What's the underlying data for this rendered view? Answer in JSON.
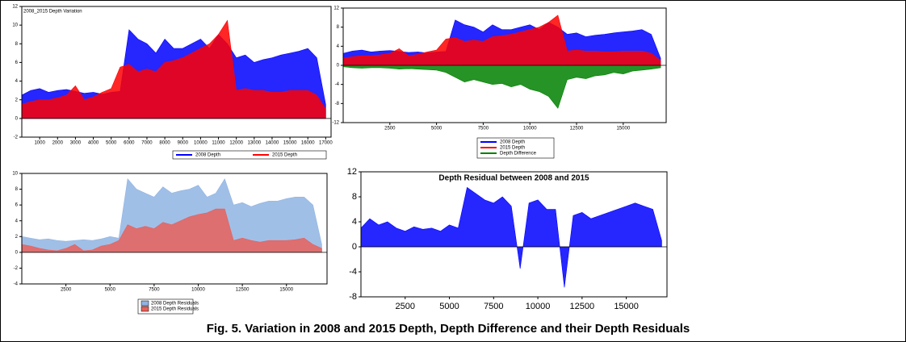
{
  "caption": "Fig. 5. Variation in 2008 and 2015 Depth, Depth Difference and their Depth Residuals",
  "chart_data": [
    {
      "type": "area",
      "title": "2008_2015 Depth Variation",
      "legend": "bottom",
      "x": [
        0,
        500,
        1000,
        1500,
        2000,
        2500,
        3000,
        3500,
        4000,
        4500,
        5000,
        5500,
        6000,
        6500,
        7000,
        7500,
        8000,
        8500,
        9000,
        9500,
        10000,
        10500,
        11000,
        11500,
        12000,
        12500,
        13000,
        13500,
        14000,
        14500,
        15000,
        15500,
        16000,
        16500,
        17000
      ],
      "xlim": [
        0,
        17300
      ],
      "xticks": [
        1000,
        2000,
        3000,
        4000,
        5000,
        6000,
        7000,
        8000,
        9000,
        10000,
        11000,
        12000,
        13000,
        14000,
        15000,
        16000,
        17000
      ],
      "ylim": [
        -2,
        12
      ],
      "yticks": [
        -2,
        0,
        2,
        4,
        6,
        8,
        10,
        12
      ],
      "series": [
        {
          "name": "2008 Depth",
          "color": "#0000ff",
          "values": [
            2.5,
            3,
            3.2,
            2.8,
            3,
            3.1,
            2.9,
            2.7,
            2.8,
            2.6,
            2.8,
            2.9,
            9.5,
            8.5,
            8,
            7,
            8.5,
            7.5,
            7.5,
            8,
            8.5,
            7.5,
            9,
            8,
            6.5,
            6.8,
            6,
            6.3,
            6.5,
            6.8,
            7,
            7.2,
            7.5,
            6.5,
            1.5
          ]
        },
        {
          "name": "2015 Depth",
          "color": "#ff0000",
          "values": [
            1.5,
            1.8,
            2,
            2,
            2.2,
            2.5,
            3.5,
            2,
            2.3,
            2.8,
            3.2,
            5.5,
            5.8,
            5,
            5.3,
            5,
            6,
            6.2,
            6.5,
            7,
            7.5,
            8,
            9,
            10.5,
            3,
            3.2,
            3,
            3,
            2.8,
            2.8,
            3,
            3,
            3,
            2.5,
            1
          ]
        }
      ]
    },
    {
      "type": "area",
      "legend": "bottom",
      "x": [
        0,
        500,
        1000,
        1500,
        2000,
        2500,
        3000,
        3500,
        4000,
        4500,
        5000,
        5500,
        6000,
        6500,
        7000,
        7500,
        8000,
        8500,
        9000,
        9500,
        10000,
        10500,
        11000,
        11500,
        12000,
        12500,
        13000,
        13500,
        14000,
        14500,
        15000,
        15500,
        16000,
        16500,
        17000
      ],
      "xlim": [
        0,
        17300
      ],
      "xticks": [
        2500,
        5000,
        7500,
        10000,
        12500,
        15000
      ],
      "ylim": [
        -12,
        12
      ],
      "yticks": [
        -12,
        -8,
        -4,
        0,
        4,
        8,
        12
      ],
      "series": [
        {
          "name": "2008 Depth",
          "color": "#0000ff",
          "values": [
            2.5,
            3,
            3.2,
            2.8,
            3,
            3.1,
            2.9,
            2.7,
            2.8,
            2.6,
            2.8,
            2.9,
            9.5,
            8.5,
            8,
            7,
            8.5,
            7.5,
            7.5,
            8,
            8.5,
            7.5,
            9,
            8,
            6.5,
            6.8,
            6,
            6.3,
            6.5,
            6.8,
            7,
            7.2,
            7.5,
            6.5,
            1.5
          ]
        },
        {
          "name": "2015 Depth",
          "color": "#ff0000",
          "values": [
            1.5,
            1.8,
            2,
            2,
            2.2,
            2.5,
            3.5,
            2,
            2.3,
            2.8,
            3.2,
            5.5,
            5.8,
            5,
            5.3,
            5,
            6,
            6.2,
            6.5,
            7,
            7.5,
            8,
            9,
            10.5,
            3,
            3.2,
            3,
            3,
            2.8,
            2.8,
            3,
            3,
            3,
            2.5,
            1
          ]
        },
        {
          "name": "Depth Difference",
          "color": "#008000",
          "values": [
            -0.3,
            -0.5,
            -0.6,
            -0.5,
            -0.5,
            -0.6,
            -0.8,
            -0.7,
            -0.8,
            -0.9,
            -1,
            -1.5,
            -2.5,
            -3.5,
            -3,
            -3.5,
            -4,
            -3.8,
            -4.5,
            -4,
            -5,
            -5.5,
            -6.5,
            -9,
            -3,
            -2.5,
            -2.8,
            -2.2,
            -2,
            -1.5,
            -1.8,
            -1.2,
            -1,
            -0.8,
            -0.5
          ]
        }
      ]
    },
    {
      "type": "area",
      "legend": "bottom",
      "x": [
        0,
        500,
        1000,
        1500,
        2000,
        2500,
        3000,
        3500,
        4000,
        4500,
        5000,
        5500,
        6000,
        6500,
        7000,
        7500,
        8000,
        8500,
        9000,
        9500,
        10000,
        10500,
        11000,
        11500,
        12000,
        12500,
        13000,
        13500,
        14000,
        14500,
        15000,
        15500,
        16000,
        16500,
        17000
      ],
      "xlim": [
        0,
        17300
      ],
      "xticks": [
        2500,
        5000,
        7500,
        10000,
        12500,
        15000
      ],
      "ylim": [
        -4,
        10
      ],
      "yticks": [
        -4,
        -2,
        0,
        2,
        4,
        6,
        8,
        10
      ],
      "series": [
        {
          "name": "2008 Depth Residuals",
          "color": "#8fb4e3",
          "values": [
            2,
            1.8,
            1.6,
            1.7,
            1.5,
            1.4,
            1.5,
            1.6,
            1.5,
            1.7,
            2,
            1.8,
            9.3,
            8,
            7.5,
            7,
            8.3,
            7.5,
            7.8,
            8,
            8.5,
            7,
            7.5,
            9.3,
            6,
            6.3,
            5.8,
            6.2,
            6.5,
            6.5,
            6.8,
            7,
            7,
            6,
            1
          ]
        },
        {
          "name": "2015 Depth Residuals",
          "color": "#e8605a",
          "values": [
            1,
            0.8,
            0.5,
            0.3,
            0.2,
            0.5,
            1,
            0.2,
            0.3,
            0.8,
            1,
            1.5,
            3.5,
            3,
            3.3,
            3,
            3.8,
            3.5,
            4,
            4.5,
            4.8,
            5,
            5.5,
            5.5,
            1.5,
            1.8,
            1.5,
            1.3,
            1.5,
            1.5,
            1.5,
            1.6,
            1.8,
            1,
            0.5
          ]
        }
      ]
    },
    {
      "type": "area",
      "title": "Depth Residual between 2008 and 2015",
      "x": [
        0,
        500,
        1000,
        1500,
        2000,
        2500,
        3000,
        3500,
        4000,
        4500,
        5000,
        5500,
        6000,
        6500,
        7000,
        7500,
        8000,
        8500,
        9000,
        9500,
        10000,
        10500,
        11000,
        11500,
        12000,
        12500,
        13000,
        13500,
        14000,
        14500,
        15000,
        15500,
        16000,
        16500,
        17000
      ],
      "xlim": [
        0,
        17300
      ],
      "xticks": [
        2500,
        5000,
        7500,
        10000,
        12500,
        15000
      ],
      "ylim": [
        -8,
        12
      ],
      "yticks": [
        -8,
        -4,
        0,
        4,
        8,
        12
      ],
      "color": "#0000ff",
      "values": [
        3,
        4.5,
        3.5,
        4,
        3,
        2.5,
        3.2,
        2.8,
        3,
        2.5,
        3.5,
        3,
        9.5,
        8.5,
        7.5,
        7,
        8,
        6.5,
        -3.5,
        7,
        7.5,
        6,
        6,
        -6.5,
        5,
        5.5,
        4.5,
        5,
        5.5,
        6,
        6.5,
        7,
        6.5,
        6,
        1
      ]
    }
  ]
}
